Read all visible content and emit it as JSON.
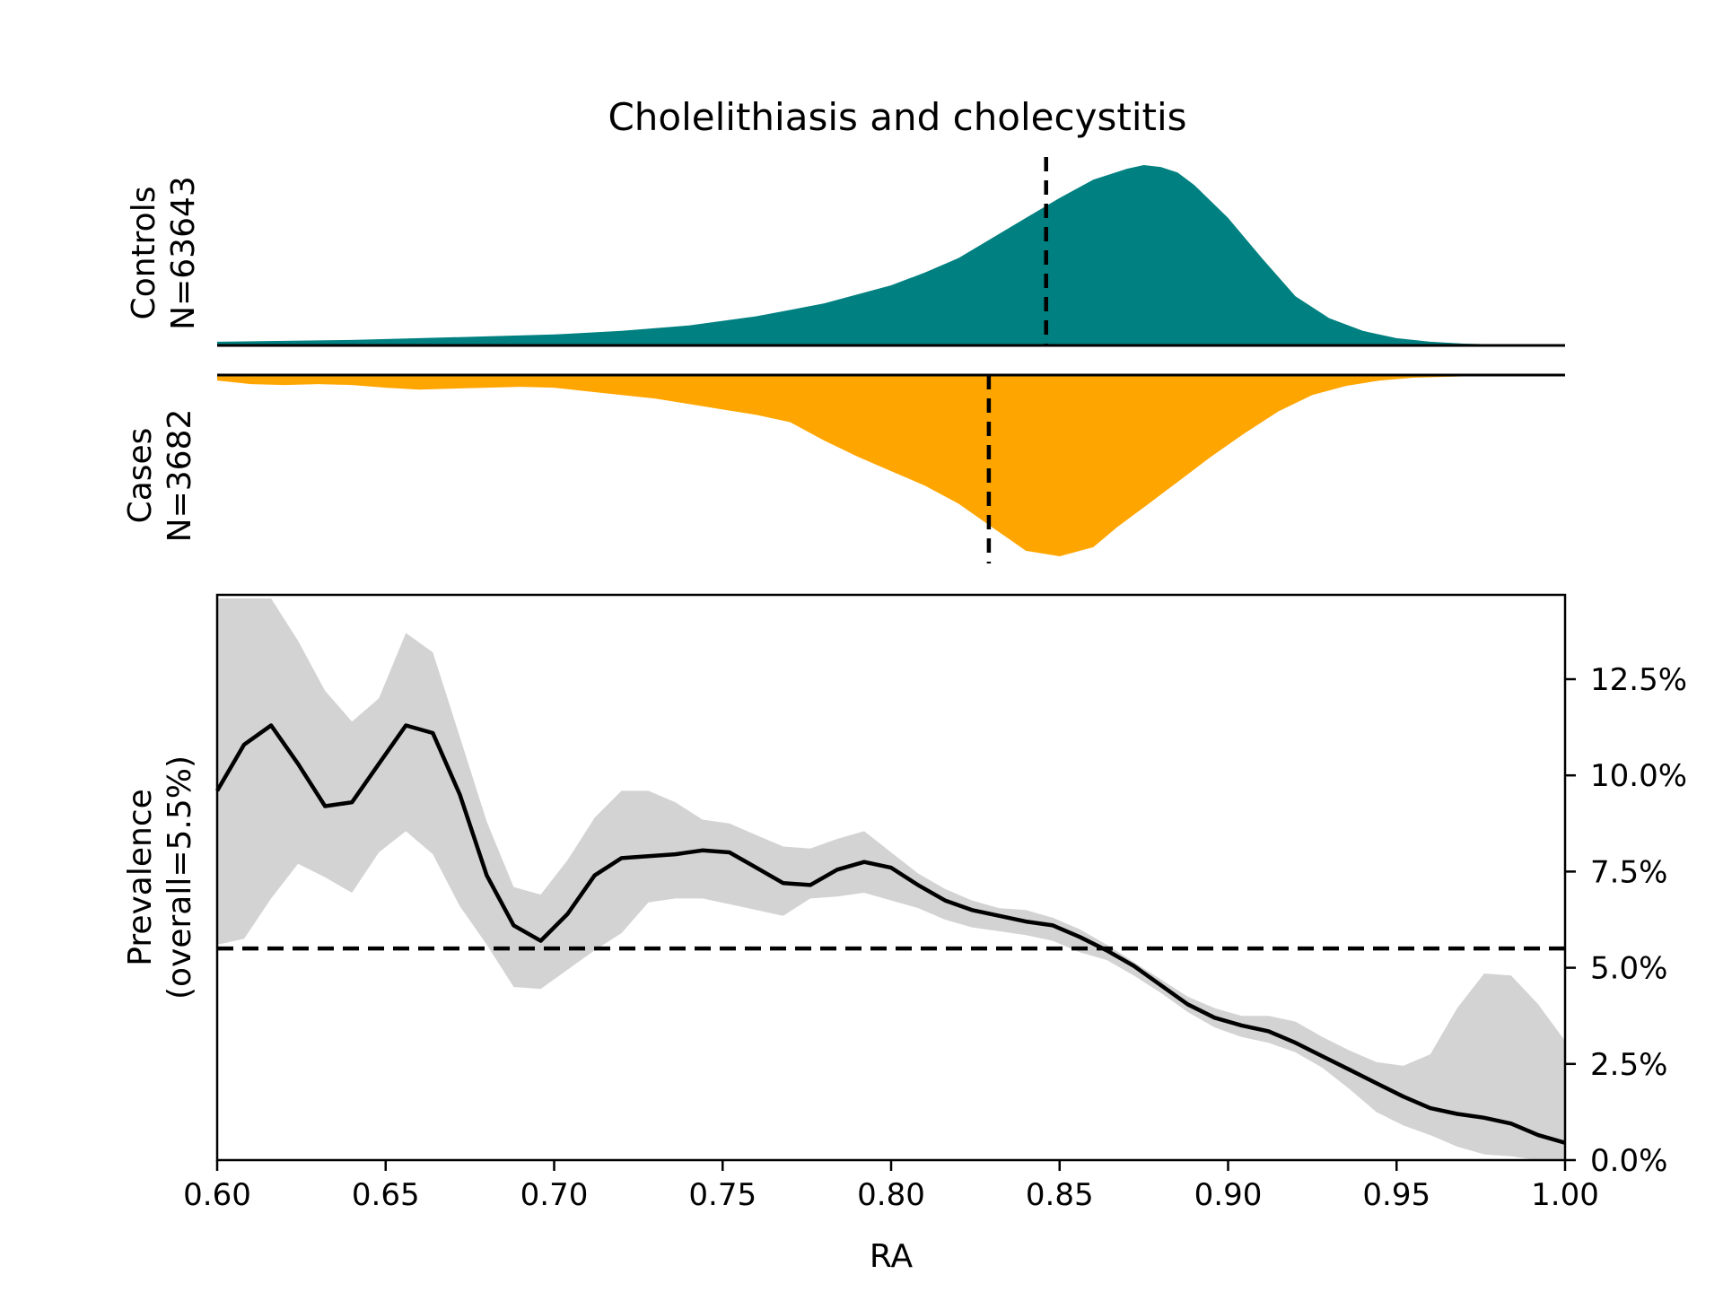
{
  "chart_data": [
    {
      "type": "area",
      "title": "Cholelithiasis and cholecystitis",
      "panel": "controls-density",
      "label_line1": "Controls",
      "label_line2": "N=63643",
      "color": "#008080",
      "xlim": [
        0.6,
        1.0
      ],
      "ylim": [
        0,
        1
      ],
      "mean_marker_x": 0.846,
      "x": [
        0.6,
        0.62,
        0.64,
        0.66,
        0.68,
        0.7,
        0.72,
        0.74,
        0.76,
        0.78,
        0.8,
        0.81,
        0.82,
        0.83,
        0.84,
        0.85,
        0.86,
        0.87,
        0.875,
        0.88,
        0.885,
        0.89,
        0.9,
        0.91,
        0.92,
        0.93,
        0.94,
        0.95,
        0.96,
        0.97,
        0.98,
        1.0
      ],
      "y": [
        0.02,
        0.025,
        0.03,
        0.04,
        0.05,
        0.06,
        0.08,
        0.11,
        0.16,
        0.23,
        0.33,
        0.4,
        0.48,
        0.59,
        0.7,
        0.81,
        0.91,
        0.97,
        0.99,
        0.98,
        0.95,
        0.88,
        0.7,
        0.48,
        0.27,
        0.15,
        0.08,
        0.04,
        0.02,
        0.01,
        0.005,
        0.0
      ]
    },
    {
      "type": "area",
      "panel": "cases-density",
      "label_line1": "Cases",
      "label_line2": "N=3682",
      "color": "#FFA500",
      "xlim": [
        0.6,
        1.0
      ],
      "ylim": [
        0,
        1
      ],
      "mean_marker_x": 0.829,
      "x": [
        0.6,
        0.61,
        0.62,
        0.63,
        0.64,
        0.65,
        0.66,
        0.67,
        0.68,
        0.69,
        0.7,
        0.71,
        0.72,
        0.73,
        0.74,
        0.75,
        0.76,
        0.77,
        0.78,
        0.79,
        0.8,
        0.81,
        0.82,
        0.83,
        0.84,
        0.85,
        0.86,
        0.867,
        0.875,
        0.885,
        0.895,
        0.905,
        0.915,
        0.925,
        0.935,
        0.945,
        0.955,
        0.965,
        0.975,
        1.0
      ],
      "y": [
        0.03,
        0.05,
        0.055,
        0.05,
        0.055,
        0.07,
        0.08,
        0.075,
        0.07,
        0.065,
        0.07,
        0.09,
        0.11,
        0.13,
        0.16,
        0.19,
        0.22,
        0.26,
        0.36,
        0.45,
        0.53,
        0.61,
        0.71,
        0.84,
        0.97,
        1.0,
        0.95,
        0.84,
        0.73,
        0.59,
        0.45,
        0.32,
        0.2,
        0.11,
        0.06,
        0.03,
        0.015,
        0.01,
        0.005,
        0.0
      ]
    },
    {
      "type": "line",
      "panel": "prevalence",
      "xlabel": "RA",
      "ylabel_line1": "Prevalence",
      "ylabel_line2": "(overall=5.5%)",
      "xlim": [
        0.6,
        1.0
      ],
      "ylim": [
        0.0,
        14.6
      ],
      "y_axis_side": "right",
      "x_ticks": [
        "0.60",
        "0.65",
        "0.70",
        "0.75",
        "0.80",
        "0.85",
        "0.90",
        "0.95",
        "1.00"
      ],
      "y_ticks": [
        "0.0%",
        "2.5%",
        "5.0%",
        "7.5%",
        "10.0%",
        "12.5%"
      ],
      "baseline_y": 5.5,
      "line_color": "#000000",
      "band_color": "#d3d3d3",
      "x": [
        0.6,
        0.608,
        0.616,
        0.624,
        0.632,
        0.64,
        0.648,
        0.656,
        0.664,
        0.672,
        0.68,
        0.688,
        0.696,
        0.704,
        0.712,
        0.72,
        0.728,
        0.736,
        0.744,
        0.752,
        0.76,
        0.768,
        0.776,
        0.784,
        0.792,
        0.8,
        0.808,
        0.816,
        0.824,
        0.832,
        0.84,
        0.848,
        0.856,
        0.864,
        0.872,
        0.88,
        0.888,
        0.896,
        0.904,
        0.912,
        0.92,
        0.928,
        0.936,
        0.944,
        0.952,
        0.96,
        0.968,
        0.976,
        0.984,
        0.992,
        1.0
      ],
      "y": [
        9.6,
        10.8,
        11.3,
        10.3,
        9.2,
        9.3,
        10.3,
        11.3,
        11.1,
        9.5,
        7.4,
        6.1,
        5.7,
        6.4,
        7.4,
        7.85,
        7.9,
        7.95,
        8.05,
        8.0,
        7.6,
        7.2,
        7.15,
        7.55,
        7.75,
        7.6,
        7.15,
        6.75,
        6.5,
        6.35,
        6.2,
        6.1,
        5.8,
        5.45,
        5.05,
        4.55,
        4.05,
        3.7,
        3.5,
        3.35,
        3.05,
        2.7,
        2.35,
        2.0,
        1.65,
        1.35,
        1.2,
        1.1,
        0.95,
        0.65,
        0.45
      ],
      "upper": [
        14.6,
        14.6,
        14.6,
        13.5,
        12.2,
        11.4,
        12.0,
        13.7,
        13.2,
        11.0,
        8.8,
        7.1,
        6.9,
        7.8,
        8.9,
        9.6,
        9.6,
        9.3,
        8.85,
        8.75,
        8.45,
        8.15,
        8.1,
        8.35,
        8.55,
        8.0,
        7.45,
        7.05,
        6.75,
        6.55,
        6.5,
        6.3,
        6.0,
        5.6,
        5.15,
        4.7,
        4.25,
        3.95,
        3.75,
        3.75,
        3.6,
        3.2,
        2.85,
        2.55,
        2.45,
        2.75,
        3.95,
        4.85,
        4.8,
        4.05,
        3.1
      ],
      "lower": [
        5.6,
        5.75,
        6.8,
        7.7,
        7.35,
        6.95,
        8.0,
        8.55,
        7.95,
        6.6,
        5.6,
        4.5,
        4.45,
        4.95,
        5.45,
        5.9,
        6.7,
        6.8,
        6.8,
        6.65,
        6.5,
        6.35,
        6.8,
        6.85,
        6.95,
        6.75,
        6.55,
        6.25,
        6.05,
        5.95,
        5.85,
        5.7,
        5.4,
        5.2,
        4.8,
        4.35,
        3.85,
        3.45,
        3.2,
        3.05,
        2.8,
        2.4,
        1.85,
        1.25,
        0.9,
        0.65,
        0.35,
        0.15,
        0.1,
        0.0,
        0.0
      ]
    }
  ]
}
